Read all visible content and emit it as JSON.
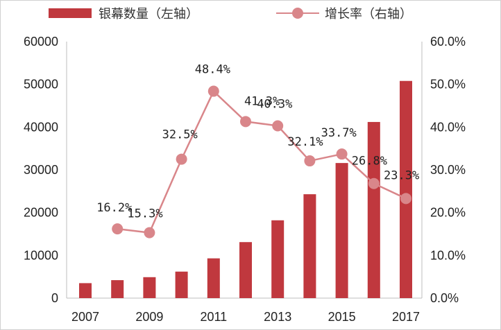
{
  "chart_data": {
    "type": "bar+line",
    "x": [
      2007,
      2008,
      2009,
      2010,
      2011,
      2012,
      2013,
      2014,
      2015,
      2016,
      2017
    ],
    "x_tick_labels": [
      "2007",
      "2009",
      "2011",
      "2013",
      "2015",
      "2017"
    ],
    "series": [
      {
        "name": "银幕数量（左轴）",
        "kind": "bar",
        "axis": "left",
        "color": "#c0383e",
        "values": [
          3500,
          4200,
          4900,
          6200,
          9300,
          13100,
          18200,
          24300,
          31600,
          41200,
          50800
        ]
      },
      {
        "name": "增长率（右轴）",
        "kind": "line",
        "axis": "right",
        "color": "#d9868a",
        "x": [
          2008,
          2009,
          2010,
          2011,
          2012,
          2013,
          2014,
          2015,
          2016,
          2017
        ],
        "values": [
          16.2,
          15.3,
          32.5,
          48.4,
          41.3,
          40.3,
          32.1,
          33.7,
          26.8,
          23.3
        ],
        "labels": [
          "16.2%",
          "15.3%",
          "32.5%",
          "48.4%",
          "41.3%",
          "40.3%",
          "32.1%",
          "33.7%",
          "26.8%",
          "23.3%"
        ]
      }
    ],
    "y_left": {
      "range": [
        0,
        60000
      ],
      "ticks": [
        0,
        10000,
        20000,
        30000,
        40000,
        50000,
        60000
      ],
      "tick_labels": [
        "0",
        "10000",
        "20000",
        "30000",
        "40000",
        "50000",
        "60000"
      ]
    },
    "y_right": {
      "range": [
        0,
        60
      ],
      "ticks": [
        0,
        10,
        20,
        30,
        40,
        50,
        60
      ],
      "tick_labels": [
        "0.0%",
        "10.0%",
        "20.0%",
        "30.0%",
        "40.0%",
        "50.0%",
        "60.0%"
      ]
    },
    "legend_position": "top",
    "grid": false
  }
}
